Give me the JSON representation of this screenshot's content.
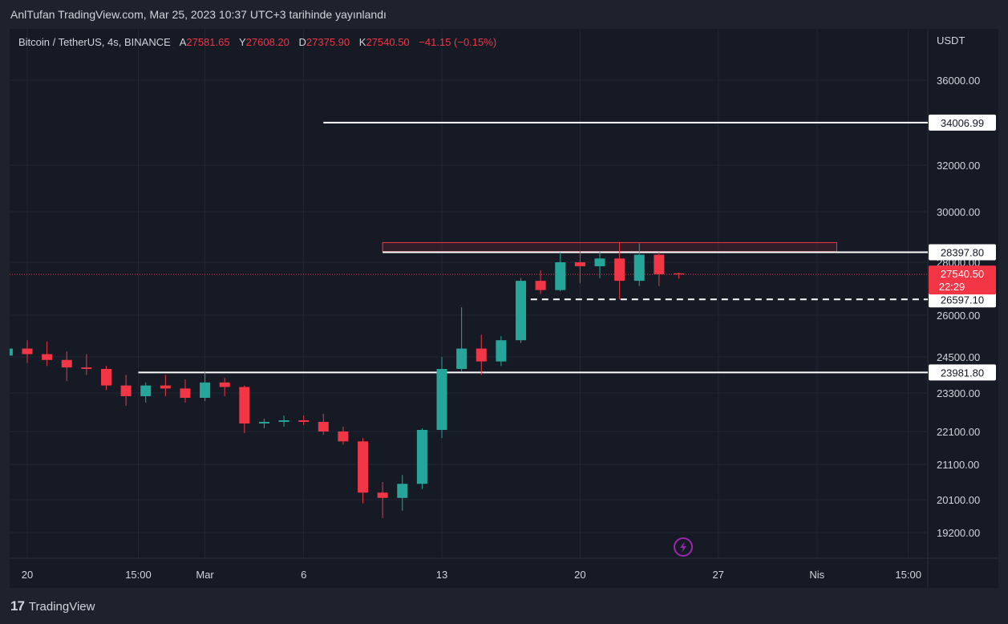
{
  "header": {
    "publish_line": "AnlTufan TradingView.com, Mar 25, 2023 10:37 UTC+3 tarihinde yayınlandı"
  },
  "legend": {
    "symbol": "Bitcoin / TetherUS, 4s, BINANCE",
    "open_label": "A",
    "open": "27581.65",
    "high_label": "Y",
    "high": "27608.20",
    "low_label": "D",
    "low": "27375.90",
    "close_label": "K",
    "close": "27540.50",
    "change": "−41.15 (−0.15%)"
  },
  "footer": {
    "brand": "TradingView"
  },
  "colors": {
    "up": "#26a69a",
    "down": "#f23645",
    "background": "#161a25",
    "grid": "#232734",
    "text": "#d1d4dc",
    "lines": "#ffffff",
    "lightning": "#9c27b0"
  },
  "icons": {
    "lightning": "lightning-bolt-icon",
    "logo": "tradingview-logo-icon"
  },
  "chart_data": {
    "type": "candlestick",
    "title": "Bitcoin / TetherUS, 4s, BINANCE",
    "currency_label": "USDT",
    "y_ticks": [
      "36000.00",
      "32000.00",
      "30000.00",
      "28000.00",
      "26000.00",
      "24500.00",
      "23300.00",
      "22100.00",
      "21100.00",
      "20100.00",
      "19200.00"
    ],
    "y_tick_values": [
      36000,
      32000,
      30000,
      28000,
      26000,
      24500,
      23300,
      22100,
      21100,
      20100,
      19200
    ],
    "x_ticks": [
      "20",
      "15:00",
      "Mar",
      "6",
      "13",
      "20",
      "27",
      "Nis",
      "15:00"
    ],
    "x_tick_dates": [
      "2023-02-20",
      "2023-02-25 15:00",
      "2023-03-01",
      "2023-03-06",
      "2023-03-13",
      "2023-03-20",
      "2023-03-27",
      "2023-04-01",
      "2023-04-05 15:00"
    ],
    "grid": true,
    "current_price": "27540.50",
    "countdown": "22:29",
    "horizontal_levels": [
      {
        "value": 34006.99,
        "label": "34006.99",
        "style": "solid",
        "from": "2023-03-07"
      },
      {
        "value": 28397.8,
        "label": "28397.80",
        "style": "solid",
        "from": "2023-03-10"
      },
      {
        "value": 26597.1,
        "label": "26597.10",
        "style": "dashed",
        "from": "2023-03-17 12:00"
      },
      {
        "value": 23981.8,
        "label": "23981.80",
        "style": "solid",
        "from": "2023-02-25 15:00"
      }
    ],
    "zone": {
      "from": "2023-03-10",
      "to": "2023-04-02",
      "y_low": 28420,
      "y_high": 28780,
      "color": "#f23645"
    },
    "series": [
      {
        "date": "2023-02-19",
        "open": 24550,
        "high": 25000,
        "low": 24400,
        "close": 24800
      },
      {
        "date": "2023-02-20",
        "open": 24800,
        "high": 25100,
        "low": 24300,
        "close": 24600
      },
      {
        "date": "2023-02-21",
        "open": 24600,
        "high": 25050,
        "low": 24200,
        "close": 24400
      },
      {
        "date": "2023-02-22",
        "open": 24400,
        "high": 24700,
        "low": 23700,
        "close": 24150
      },
      {
        "date": "2023-02-23",
        "open": 24150,
        "high": 24600,
        "low": 23900,
        "close": 24100
      },
      {
        "date": "2023-02-24",
        "open": 24100,
        "high": 24200,
        "low": 23400,
        "close": 23550
      },
      {
        "date": "2023-02-25",
        "open": 23550,
        "high": 23900,
        "low": 22900,
        "close": 23200
      },
      {
        "date": "2023-02-26",
        "open": 23200,
        "high": 23650,
        "low": 23000,
        "close": 23550
      },
      {
        "date": "2023-02-27",
        "open": 23550,
        "high": 23900,
        "low": 23200,
        "close": 23450
      },
      {
        "date": "2023-02-28",
        "open": 23450,
        "high": 23750,
        "low": 23000,
        "close": 23150
      },
      {
        "date": "2023-03-01",
        "open": 23150,
        "high": 24000,
        "low": 23050,
        "close": 23650
      },
      {
        "date": "2023-03-02",
        "open": 23650,
        "high": 23800,
        "low": 23200,
        "close": 23500
      },
      {
        "date": "2023-03-03",
        "open": 23500,
        "high": 23550,
        "low": 22050,
        "close": 22350
      },
      {
        "date": "2023-03-04",
        "open": 22350,
        "high": 22500,
        "low": 22200,
        "close": 22400
      },
      {
        "date": "2023-03-05",
        "open": 22400,
        "high": 22600,
        "low": 22250,
        "close": 22450
      },
      {
        "date": "2023-03-06",
        "open": 22450,
        "high": 22600,
        "low": 22300,
        "close": 22400
      },
      {
        "date": "2023-03-07",
        "open": 22400,
        "high": 22650,
        "low": 22000,
        "close": 22100
      },
      {
        "date": "2023-03-08",
        "open": 22100,
        "high": 22250,
        "low": 21700,
        "close": 21800
      },
      {
        "date": "2023-03-09",
        "open": 21800,
        "high": 21900,
        "low": 20000,
        "close": 20300
      },
      {
        "date": "2023-03-10",
        "open": 20300,
        "high": 20600,
        "low": 19600,
        "close": 20150
      },
      {
        "date": "2023-03-11",
        "open": 20150,
        "high": 20800,
        "low": 19800,
        "close": 20550
      },
      {
        "date": "2023-03-12",
        "open": 20550,
        "high": 22200,
        "low": 20400,
        "close": 22150
      },
      {
        "date": "2023-03-13",
        "open": 22150,
        "high": 24500,
        "low": 21900,
        "close": 24100
      },
      {
        "date": "2023-03-14",
        "open": 24100,
        "high": 26300,
        "low": 24000,
        "close": 24800
      },
      {
        "date": "2023-03-15",
        "open": 24800,
        "high": 25300,
        "low": 23900,
        "close": 24350
      },
      {
        "date": "2023-03-16",
        "open": 24350,
        "high": 25250,
        "low": 24200,
        "close": 25100
      },
      {
        "date": "2023-03-17",
        "open": 25100,
        "high": 27400,
        "low": 25000,
        "close": 27300
      },
      {
        "date": "2023-03-18",
        "open": 27300,
        "high": 27700,
        "low": 26800,
        "close": 26950
      },
      {
        "date": "2023-03-19",
        "open": 26950,
        "high": 28400,
        "low": 26900,
        "close": 28000
      },
      {
        "date": "2023-03-20",
        "open": 28000,
        "high": 28450,
        "low": 27200,
        "close": 27850
      },
      {
        "date": "2023-03-21",
        "open": 27850,
        "high": 28450,
        "low": 27400,
        "close": 28150
      },
      {
        "date": "2023-03-22",
        "open": 28150,
        "high": 28800,
        "low": 26600,
        "close": 27300
      },
      {
        "date": "2023-03-23",
        "open": 27300,
        "high": 28750,
        "low": 27100,
        "close": 28300
      },
      {
        "date": "2023-03-24",
        "open": 28300,
        "high": 28400,
        "low": 27100,
        "close": 27550
      },
      {
        "date": "2023-03-25",
        "open": 27581.65,
        "high": 27608.2,
        "low": 27375.9,
        "close": 27540.5
      }
    ]
  }
}
